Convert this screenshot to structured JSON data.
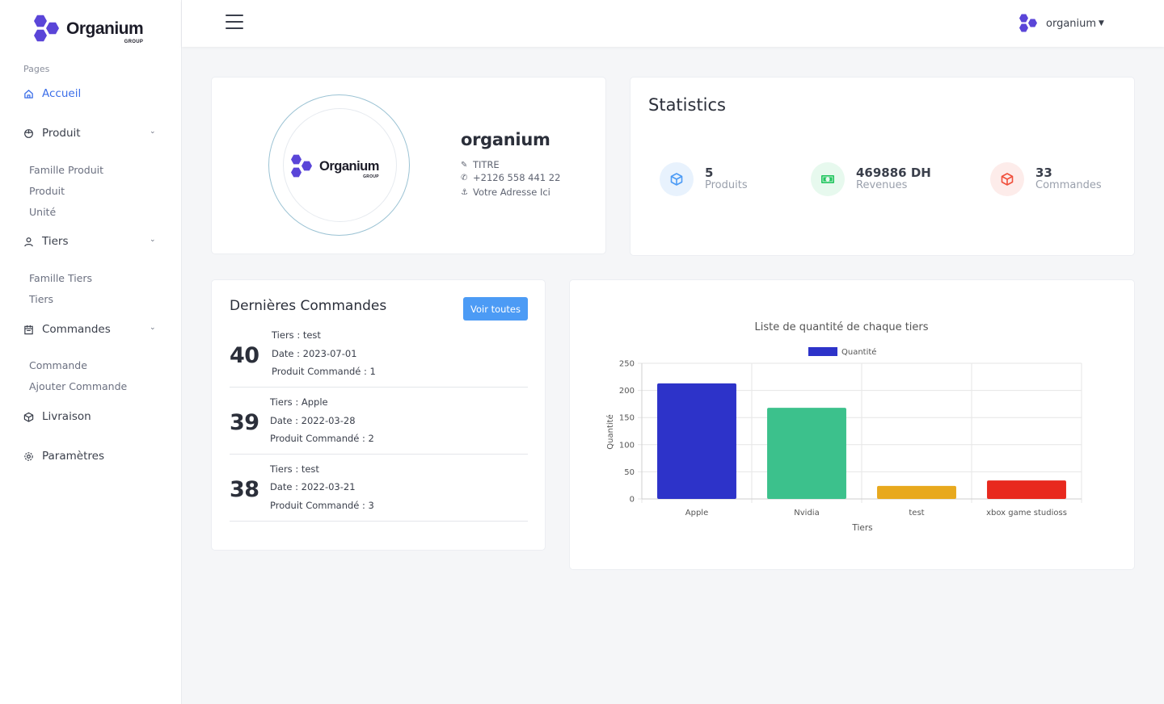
{
  "brand": {
    "name": "Organium",
    "sub": "GROUP",
    "color": "#5a45d8"
  },
  "sidebar": {
    "section_label": "Pages",
    "accueil": "Accueil",
    "produit": "Produit",
    "produit_sub": [
      "Famille Produit",
      "Produit",
      "Unité"
    ],
    "tiers": "Tiers",
    "tiers_sub": [
      "Famille Tiers",
      "Tiers"
    ],
    "commandes": "Commandes",
    "commandes_sub": [
      "Commande",
      "Ajouter Commande"
    ],
    "livraison": "Livraison",
    "parametres": "Paramètres"
  },
  "topbar": {
    "user": "organium",
    "icons": [
      "menu-icon",
      "chevron-down-icon"
    ]
  },
  "profile": {
    "name": "organium",
    "title": "TITRE",
    "phone": "+2126 558 441 22",
    "address": "Votre Adresse Ici"
  },
  "stats": {
    "title": "Statistics",
    "items": [
      {
        "value": "5",
        "label": "Produits",
        "color": "#4c9bf5",
        "icon": "box-icon"
      },
      {
        "value": "469886 DH",
        "label": "Revenues",
        "color": "#22c55e",
        "icon": "money-icon"
      },
      {
        "value": "33",
        "label": "Commandes",
        "color": "#f0503c",
        "icon": "cube-icon"
      }
    ]
  },
  "orders": {
    "title": "Dernières Commandes",
    "button": "Voir toutes",
    "items": [
      {
        "num": "40",
        "tiers": "Tiers : test",
        "date": "Date : 2023-07-01",
        "produit": "Produit Commandé : 1"
      },
      {
        "num": "39",
        "tiers": "Tiers : Apple",
        "date": "Date : 2022-03-28",
        "produit": "Produit Commandé : 2"
      },
      {
        "num": "38",
        "tiers": "Tiers : test",
        "date": "Date : 2022-03-21",
        "produit": "Produit Commandé : 3"
      }
    ]
  },
  "chart_data": {
    "type": "bar",
    "title": "Liste de quantité de chaque tiers",
    "xlabel": "Tiers",
    "ylabel": "Quantité",
    "categories": [
      "Apple",
      "Nvidia",
      "test",
      "xbox game studioss"
    ],
    "series": [
      {
        "name": "Quantité",
        "values": [
          213,
          168,
          24,
          34
        ]
      }
    ],
    "colors": [
      "#2d33c9",
      "#3cc18c",
      "#e8a91e",
      "#e8291e"
    ],
    "legend_color": "#2d33c9",
    "ylim": [
      0,
      250
    ],
    "yticks": [
      0,
      50,
      100,
      150,
      200,
      250
    ],
    "grid": true,
    "legend": "top"
  }
}
